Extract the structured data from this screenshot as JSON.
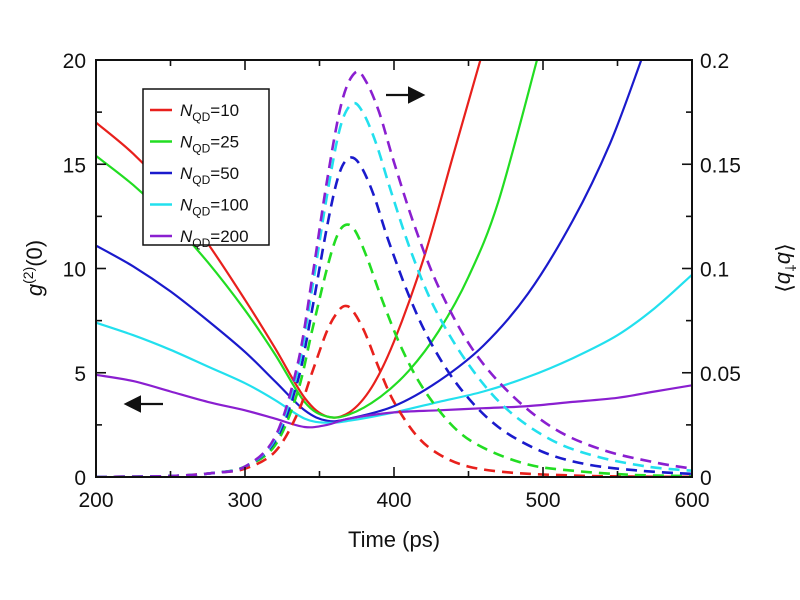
{
  "chart_data": {
    "type": "line",
    "title": "",
    "xlabel": "Time (ps)",
    "ylabel_left": {
      "base": "g",
      "sup": "(2)",
      "suffix": "(0)"
    },
    "ylabel_right": {
      "left_bracket": "⟨",
      "op1": "b",
      "dagger": "†",
      "op2": "b",
      "right_bracket": "⟩"
    },
    "xlim": [
      200,
      600
    ],
    "ylim_left": [
      0,
      20
    ],
    "ylim_right": [
      0,
      0.2
    ],
    "x_ticks": [
      200,
      300,
      400,
      500,
      600
    ],
    "x_tick_labels": [
      "200",
      "300",
      "400",
      "500",
      "600"
    ],
    "x_minor_ticks": [
      250,
      350,
      450,
      550
    ],
    "y_left_ticks": [
      0,
      5,
      10,
      15,
      20
    ],
    "y_left_tick_labels": [
      "0",
      "5",
      "10",
      "15",
      "20"
    ],
    "y_left_minor_ticks": [
      2.5,
      7.5,
      12.5,
      17.5
    ],
    "y_right_ticks": [
      0,
      0.05,
      0.1,
      0.15,
      0.2
    ],
    "y_right_tick_labels": [
      "0",
      "0.05",
      "0.1",
      "0.15",
      "0.2"
    ],
    "y_right_minor_ticks": [
      0.025,
      0.075,
      0.125,
      0.175
    ],
    "grid": false,
    "legend_position": "top-left",
    "legend": [
      {
        "symbol": "N",
        "subscript": "QD",
        "suffix": "=10",
        "color": "#e8201c"
      },
      {
        "symbol": "N",
        "subscript": "QD",
        "suffix": "=25",
        "color": "#22dd22"
      },
      {
        "symbol": "N",
        "subscript": "QD",
        "suffix": "=50",
        "color": "#1a1acc"
      },
      {
        "symbol": "N",
        "subscript": "QD",
        "suffix": "=100",
        "color": "#22e0ee"
      },
      {
        "symbol": "N",
        "subscript": "QD",
        "suffix": "=200",
        "color": "#8a1fd0"
      }
    ],
    "annotations": [
      {
        "type": "arrow",
        "direction": "left",
        "meaning": "solid lines use left axis g(2)(0)",
        "at": {
          "x": 220,
          "y": 3.5
        }
      },
      {
        "type": "arrow",
        "direction": "right",
        "meaning": "dashed lines use right axis <b†b>",
        "at": {
          "x": 400,
          "y": 19.2
        }
      }
    ],
    "series": [
      {
        "name": "g2 N_QD=10",
        "axis": "left",
        "style": "solid",
        "color": "#e8201c",
        "x": [
          200,
          225,
          250,
          275,
          300,
          320,
          340,
          355,
          370,
          385,
          400,
          420,
          440,
          458
        ],
        "y": [
          17.0,
          15.5,
          13.6,
          11.2,
          8.5,
          6.2,
          3.8,
          2.9,
          3.1,
          4.3,
          6.5,
          10.5,
          15.5,
          20.0
        ]
      },
      {
        "name": "g2 N_QD=25",
        "axis": "left",
        "style": "solid",
        "color": "#22dd22",
        "x": [
          200,
          225,
          250,
          275,
          300,
          320,
          340,
          355,
          370,
          390,
          410,
          430,
          450,
          470,
          496
        ],
        "y": [
          15.4,
          14.0,
          12.3,
          10.3,
          8.0,
          5.9,
          3.6,
          2.9,
          3.0,
          3.8,
          5.1,
          7.0,
          9.6,
          13.2,
          20.0
        ]
      },
      {
        "name": "g2 N_QD=50",
        "axis": "left",
        "style": "solid",
        "color": "#1a1acc",
        "x": [
          200,
          225,
          250,
          275,
          300,
          320,
          340,
          355,
          370,
          400,
          430,
          460,
          490,
          520,
          545,
          566
        ],
        "y": [
          11.1,
          10.1,
          8.9,
          7.5,
          6.0,
          4.6,
          3.2,
          2.7,
          2.8,
          3.4,
          4.6,
          6.3,
          8.8,
          12.3,
          16.0,
          20.0
        ]
      },
      {
        "name": "g2 N_QD=100",
        "axis": "left",
        "style": "solid",
        "color": "#22e0ee",
        "x": [
          200,
          225,
          250,
          275,
          300,
          320,
          340,
          355,
          370,
          400,
          430,
          460,
          490,
          520,
          550,
          575,
          600
        ],
        "y": [
          7.4,
          6.8,
          6.1,
          5.3,
          4.5,
          3.7,
          2.8,
          2.6,
          2.7,
          3.1,
          3.6,
          4.1,
          4.8,
          5.7,
          6.8,
          8.1,
          9.7
        ]
      },
      {
        "name": "g2 N_QD=200",
        "axis": "left",
        "style": "solid",
        "color": "#8a1fd0",
        "x": [
          200,
          225,
          250,
          275,
          300,
          320,
          340,
          355,
          370,
          400,
          430,
          460,
          490,
          520,
          550,
          575,
          600
        ],
        "y": [
          4.9,
          4.6,
          4.1,
          3.6,
          3.2,
          2.8,
          2.4,
          2.5,
          2.8,
          3.1,
          3.2,
          3.3,
          3.4,
          3.6,
          3.8,
          4.1,
          4.4
        ]
      },
      {
        "name": "<b†b> N_QD=10",
        "axis": "right",
        "style": "dashed",
        "color": "#e8201c",
        "x": [
          200,
          250,
          280,
          300,
          320,
          335,
          345,
          355,
          362,
          367,
          372,
          380,
          390,
          400,
          415,
          430,
          450,
          480,
          520,
          560,
          600
        ],
        "y": [
          0,
          0.0005,
          0.002,
          0.004,
          0.012,
          0.03,
          0.05,
          0.07,
          0.079,
          0.082,
          0.08,
          0.07,
          0.052,
          0.036,
          0.02,
          0.011,
          0.005,
          0.002,
          0.0007,
          0.0002,
          0.0001
        ]
      },
      {
        "name": "<b†b> N_QD=25",
        "axis": "right",
        "style": "dashed",
        "color": "#22dd22",
        "x": [
          200,
          250,
          280,
          300,
          320,
          335,
          345,
          355,
          362,
          368,
          374,
          382,
          392,
          405,
          420,
          440,
          460,
          490,
          520,
          560,
          600
        ],
        "y": [
          0,
          0.0005,
          0.002,
          0.005,
          0.015,
          0.04,
          0.07,
          0.1,
          0.116,
          0.121,
          0.118,
          0.105,
          0.085,
          0.062,
          0.042,
          0.024,
          0.014,
          0.006,
          0.003,
          0.001,
          0.0005
        ]
      },
      {
        "name": "<b†b> N_QD=50",
        "axis": "right",
        "style": "dashed",
        "color": "#1a1acc",
        "x": [
          200,
          250,
          280,
          300,
          320,
          335,
          345,
          355,
          363,
          370,
          377,
          386,
          396,
          410,
          425,
          445,
          470,
          500,
          530,
          565,
          600
        ],
        "y": [
          0,
          0.0005,
          0.002,
          0.005,
          0.017,
          0.045,
          0.08,
          0.12,
          0.145,
          0.153,
          0.15,
          0.136,
          0.114,
          0.087,
          0.064,
          0.042,
          0.024,
          0.012,
          0.006,
          0.003,
          0.0015
        ]
      },
      {
        "name": "<b†b> N_QD=100",
        "axis": "right",
        "style": "dashed",
        "color": "#22e0ee",
        "x": [
          200,
          250,
          280,
          300,
          320,
          335,
          345,
          355,
          364,
          372,
          379,
          388,
          398,
          412,
          428,
          450,
          475,
          505,
          535,
          570,
          600
        ],
        "y": [
          0,
          0.0005,
          0.002,
          0.005,
          0.018,
          0.05,
          0.09,
          0.135,
          0.168,
          0.179,
          0.175,
          0.16,
          0.137,
          0.107,
          0.08,
          0.054,
          0.033,
          0.018,
          0.01,
          0.005,
          0.003
        ]
      },
      {
        "name": "<b†b> N_QD=200",
        "axis": "right",
        "style": "dashed",
        "color": "#8a1fd0",
        "x": [
          200,
          250,
          280,
          300,
          320,
          335,
          345,
          355,
          365,
          374,
          381,
          390,
          400,
          414,
          430,
          452,
          478,
          508,
          540,
          575,
          600
        ],
        "y": [
          0,
          0.0005,
          0.002,
          0.005,
          0.019,
          0.053,
          0.095,
          0.142,
          0.18,
          0.194,
          0.19,
          0.175,
          0.151,
          0.12,
          0.091,
          0.062,
          0.04,
          0.023,
          0.013,
          0.007,
          0.004
        ]
      }
    ]
  }
}
